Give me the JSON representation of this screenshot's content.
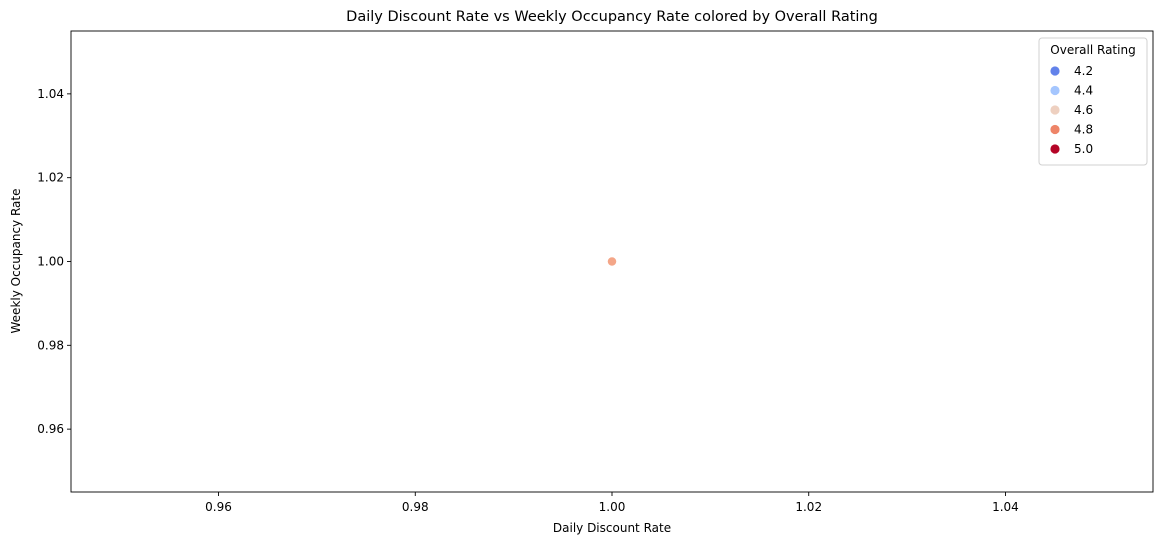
{
  "chart_data": {
    "type": "scatter",
    "title": "Daily Discount Rate vs Weekly Occupancy Rate colored by Overall Rating",
    "xlabel": "Daily Discount Rate",
    "ylabel": "Weekly Occupancy Rate",
    "xlim": [
      0.945,
      1.055
    ],
    "ylim": [
      0.945,
      1.055
    ],
    "x_ticks": [
      "0.96",
      "0.98",
      "1.00",
      "1.02",
      "1.04"
    ],
    "y_ticks": [
      "0.96",
      "0.98",
      "1.00",
      "1.02",
      "1.04"
    ],
    "grid": false,
    "points": [
      {
        "x": 1.0,
        "y": 1.0,
        "rating": 4.77,
        "color": "#f4a688"
      }
    ],
    "legend": {
      "title": "Overall Rating",
      "placement": "top-right",
      "entries": [
        {
          "label": "4.2",
          "color": "#6282ea"
        },
        {
          "label": "4.4",
          "color": "#a5c6fe"
        },
        {
          "label": "4.6",
          "color": "#eed0c0"
        },
        {
          "label": "4.8",
          "color": "#ee8468"
        },
        {
          "label": "5.0",
          "color": "#b40426"
        }
      ]
    }
  }
}
